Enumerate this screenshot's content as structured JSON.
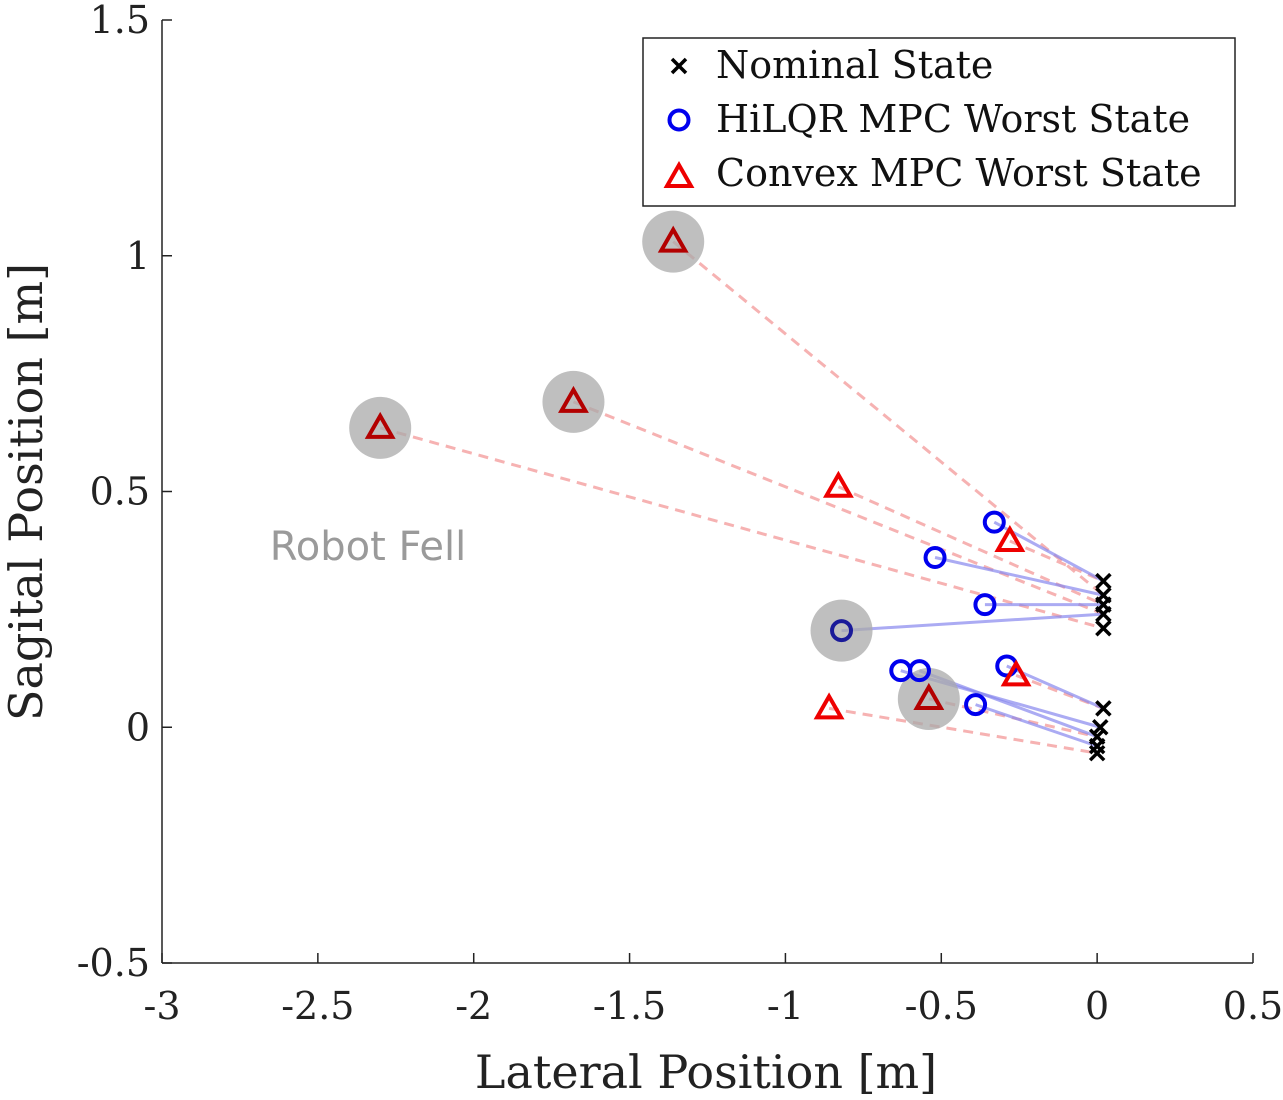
{
  "chart_data": {
    "type": "scatter",
    "xlabel": "Lateral Position [m]",
    "ylabel": "Sagital Position [m]",
    "xlim": [
      -3,
      0.5
    ],
    "ylim": [
      -0.5,
      1.5
    ],
    "xticks": [
      -3,
      -2.5,
      -2,
      -1.5,
      -1,
      -0.5,
      0,
      0.5
    ],
    "yticks": [
      -0.5,
      0,
      0.5,
      1,
      1.5
    ],
    "xtick_labels": [
      "-3",
      "-2.5",
      "-2",
      "-1.5",
      "-1",
      "-0.5",
      "0",
      "0.5"
    ],
    "ytick_labels": [
      "-0.5",
      "0",
      "0.5",
      "1",
      "1.5"
    ],
    "grid": false,
    "legend_position": "top-right",
    "colors": {
      "nominal": "#000000",
      "hilqr": "#0000ee",
      "convex": "#ee0000",
      "fell_marker": "#aaaaaa",
      "hilqr_line": "#8888ee",
      "convex_line": "#f4a0a0"
    },
    "series": [
      {
        "name": "Nominal State",
        "marker": "x",
        "points": [
          [
            0.02,
            0.31
          ],
          [
            0.02,
            0.28
          ],
          [
            0.02,
            0.26
          ],
          [
            0.02,
            0.24
          ],
          [
            0.02,
            0.21
          ],
          [
            0.02,
            0.04
          ],
          [
            0.01,
            0.0
          ],
          [
            0.0,
            -0.02
          ],
          [
            0.0,
            -0.04
          ],
          [
            0.0,
            -0.055
          ]
        ]
      },
      {
        "name": "HiLQR MPC Worst State",
        "marker": "circle",
        "points": [
          [
            -0.33,
            0.435
          ],
          [
            -0.52,
            0.36
          ],
          [
            -0.36,
            0.26
          ],
          [
            -0.82,
            0.205
          ],
          [
            -0.29,
            0.13
          ],
          [
            -0.63,
            0.12
          ],
          [
            -0.57,
            0.12
          ],
          [
            -0.39,
            0.048
          ]
        ],
        "fell": [
          false,
          false,
          false,
          true,
          false,
          false,
          false,
          false
        ]
      },
      {
        "name": "Convex MPC Worst State",
        "marker": "triangle",
        "points": [
          [
            -1.36,
            1.03
          ],
          [
            -1.68,
            0.69
          ],
          [
            -2.3,
            0.635
          ],
          [
            -0.83,
            0.51
          ],
          [
            -0.28,
            0.395
          ],
          [
            -0.26,
            0.11
          ],
          [
            -0.54,
            0.06
          ],
          [
            -0.86,
            0.04
          ]
        ],
        "fell": [
          true,
          true,
          true,
          false,
          false,
          false,
          true,
          false
        ]
      }
    ],
    "links": {
      "hilqr": [
        [
          0,
          0
        ],
        [
          1,
          1
        ],
        [
          2,
          2
        ],
        [
          3,
          3
        ],
        [
          4,
          5
        ],
        [
          5,
          6
        ],
        [
          6,
          7
        ],
        [
          7,
          8
        ]
      ],
      "convex": [
        [
          0,
          1
        ],
        [
          1,
          3
        ],
        [
          2,
          4
        ],
        [
          3,
          2
        ],
        [
          4,
          0
        ],
        [
          5,
          5
        ],
        [
          6,
          7
        ],
        [
          7,
          9
        ]
      ]
    },
    "annotations": [
      {
        "text": "Robot Fell",
        "x": -2.35,
        "y": 0.38
      }
    ]
  }
}
